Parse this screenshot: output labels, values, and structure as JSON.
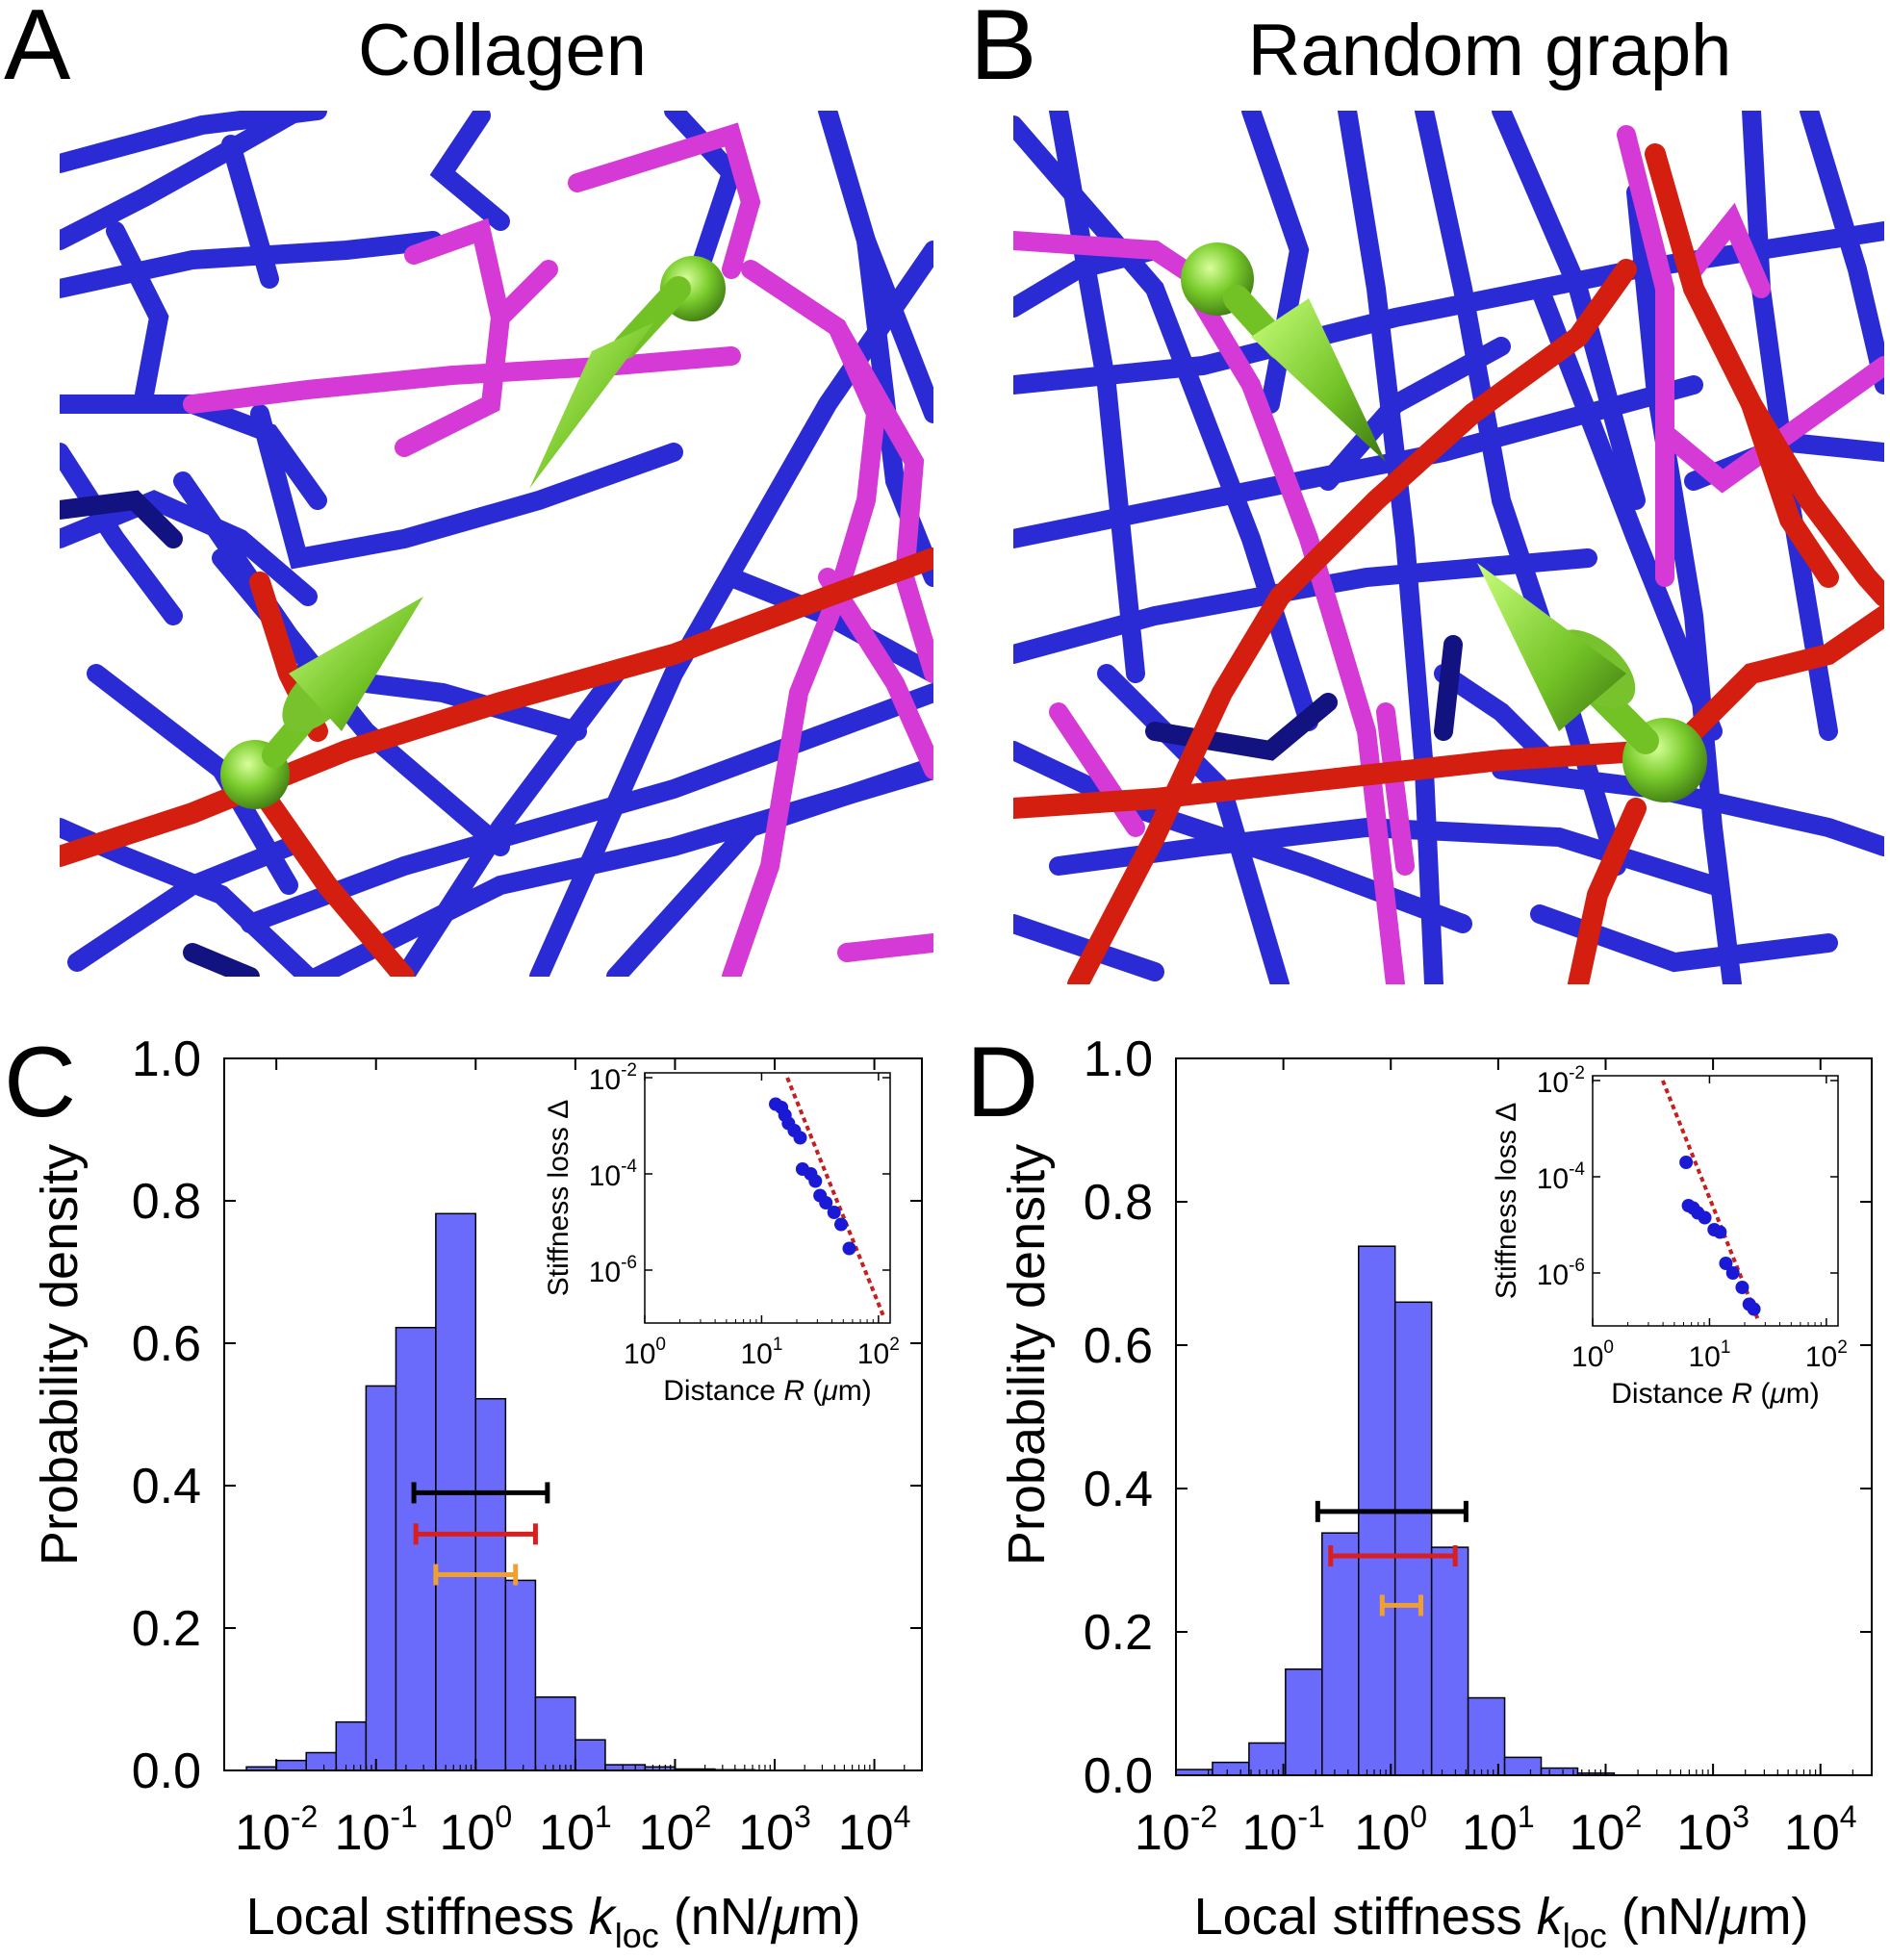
{
  "panels": {
    "A": {
      "letter": "A",
      "title": "Collagen"
    },
    "B": {
      "letter": "B",
      "title": "Random graph"
    },
    "C": {
      "letter": "C"
    },
    "D": {
      "letter": "D"
    }
  },
  "colors": {
    "hist_fill": "#6a6afb",
    "bar_black": "#000000",
    "bar_red": "#d81e1e",
    "bar_orange": "#f0a030",
    "inset_point": "#1a1ad6",
    "inset_fit": "#c81e1e",
    "fiber_blue": "#2b2bd6",
    "fiber_magenta": "#d63ad6",
    "fiber_red": "#d41e10",
    "arrow_green": "#7acc2c"
  },
  "chart_data": [
    {
      "panel": "C",
      "type": "bar",
      "xlabel": "Local stiffness k_loc (nN/μm)",
      "ylabel": "Probability density",
      "x_scale": "log",
      "xlim": [
        0.003,
        30000
      ],
      "ylim": [
        0,
        1.0
      ],
      "x_tick_labels": [
        "10^-2",
        "10^-1",
        "10^0",
        "10^1",
        "10^2",
        "10^3",
        "10^4"
      ],
      "y_tick_labels": [
        "0.0",
        "0.2",
        "0.4",
        "0.6",
        "0.8",
        "1.0"
      ],
      "bin_edges_log10": [
        -2.3,
        -2,
        -1.7,
        -1.4,
        -1.1,
        -0.8,
        -0.4,
        0,
        0.3,
        0.6,
        1.0,
        1.3,
        1.7,
        2.0,
        2.4,
        2.8
      ],
      "densities": [
        0.005,
        0.014,
        0.025,
        0.068,
        0.54,
        0.622,
        0.782,
        0.522,
        0.267,
        0.103,
        0.043,
        0.008,
        0.005,
        0.002,
        0.001
      ],
      "error_bars": [
        {
          "color": "black",
          "log10_range": [
            -0.62,
            0.72
          ],
          "y": 0.39
        },
        {
          "color": "red",
          "log10_range": [
            -0.6,
            0.6
          ],
          "y": 0.332
        },
        {
          "color": "orange",
          "log10_range": [
            -0.4,
            0.4
          ],
          "y": 0.275
        }
      ],
      "inset": {
        "type": "scatter",
        "xlabel": "Distance R (μm)",
        "ylabel": "Stiffness loss Δ",
        "x_scale": "log",
        "y_scale": "log",
        "xlim_log10": [
          0,
          2.1
        ],
        "ylim_log10": [
          -7.1,
          -1.9
        ],
        "x_tick_labels": [
          "10^0",
          "10^1",
          "10^2"
        ],
        "y_tick_labels": [
          "10^-2",
          "10^-4",
          "10^-6"
        ],
        "points_log10": [
          [
            1.12,
            -2.55
          ],
          [
            1.17,
            -2.62
          ],
          [
            1.2,
            -2.78
          ],
          [
            1.23,
            -2.95
          ],
          [
            1.28,
            -3.1
          ],
          [
            1.33,
            -3.25
          ],
          [
            1.35,
            -3.9
          ],
          [
            1.42,
            -4.0
          ],
          [
            1.46,
            -4.15
          ],
          [
            1.5,
            -4.45
          ],
          [
            1.55,
            -4.6
          ],
          [
            1.62,
            -4.8
          ],
          [
            1.68,
            -5.05
          ],
          [
            1.75,
            -5.55
          ]
        ],
        "fit_line_log10": [
          [
            1.22,
            -2.0
          ],
          [
            2.05,
            -7.0
          ]
        ]
      }
    },
    {
      "panel": "D",
      "type": "bar",
      "xlabel": "Local stiffness k_loc (nN/μm)",
      "ylabel": "Probability density",
      "x_scale": "log",
      "xlim": [
        0.01,
        30000
      ],
      "ylim": [
        0,
        1.0
      ],
      "x_tick_labels": [
        "10^-2",
        "10^-1",
        "10^0",
        "10^1",
        "10^2",
        "10^3",
        "10^4"
      ],
      "y_tick_labels": [
        "0.0",
        "0.2",
        "0.4",
        "0.6",
        "0.8",
        "1.0"
      ],
      "bin_edges_log10": [
        -2,
        -1.66,
        -1.32,
        -0.98,
        -0.64,
        -0.3,
        0.04,
        0.38,
        0.72,
        1.06,
        1.4,
        1.74,
        2.08
      ],
      "densities": [
        0.008,
        0.018,
        0.045,
        0.148,
        0.338,
        0.738,
        0.66,
        0.318,
        0.108,
        0.025,
        0.01,
        0.003
      ],
      "error_bars": [
        {
          "color": "black",
          "log10_range": [
            -0.68,
            0.7
          ],
          "y": 0.368
        },
        {
          "color": "red",
          "log10_range": [
            -0.56,
            0.6
          ],
          "y": 0.306
        },
        {
          "color": "orange",
          "log10_range": [
            -0.08,
            0.28
          ],
          "y": 0.237
        }
      ],
      "inset": {
        "type": "scatter",
        "xlabel": "Distance R (μm)",
        "ylabel": "Stiffness loss Δ",
        "x_scale": "log",
        "y_scale": "log",
        "xlim_log10": [
          0,
          2.1
        ],
        "ylim_log10": [
          -7.1,
          -1.9
        ],
        "x_tick_labels": [
          "10^0",
          "10^1",
          "10^2"
        ],
        "y_tick_labels": [
          "10^-2",
          "10^-4",
          "10^-6"
        ],
        "points_log10": [
          [
            0.8,
            -3.7
          ],
          [
            0.82,
            -4.6
          ],
          [
            0.86,
            -4.65
          ],
          [
            0.9,
            -4.75
          ],
          [
            0.96,
            -4.85
          ],
          [
            1.04,
            -5.1
          ],
          [
            1.09,
            -5.15
          ],
          [
            1.14,
            -5.8
          ],
          [
            1.2,
            -6.0
          ],
          [
            1.28,
            -6.3
          ],
          [
            1.34,
            -6.65
          ],
          [
            1.38,
            -6.75
          ]
        ],
        "fit_line_log10": [
          [
            0.6,
            -2.0
          ],
          [
            1.42,
            -7.0
          ]
        ]
      }
    }
  ]
}
